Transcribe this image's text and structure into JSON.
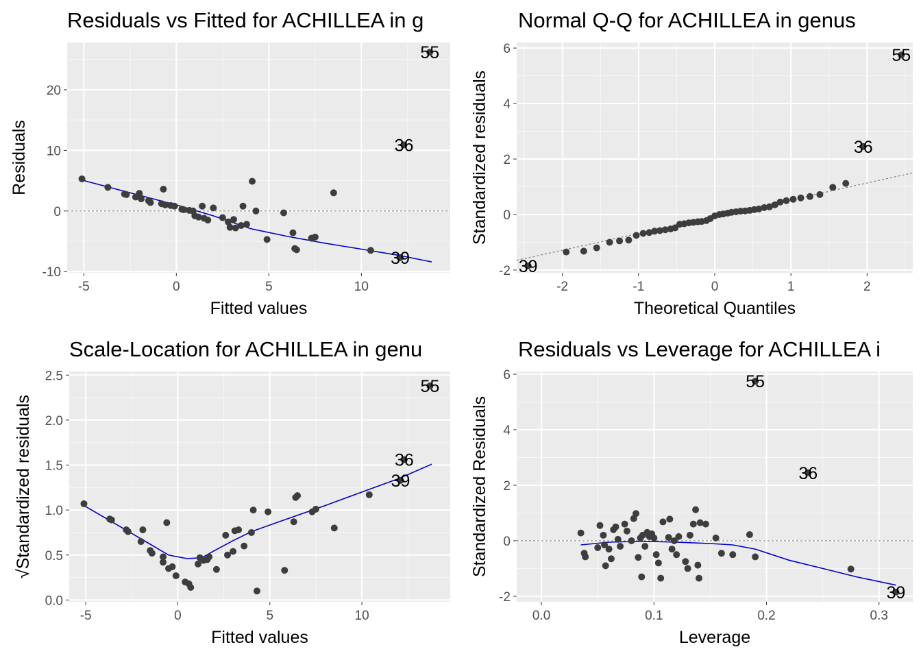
{
  "chart_data": [
    {
      "type": "scatter",
      "title": "Residuals vs Fitted for ACHILLEA in g",
      "xlabel": "Fitted values",
      "ylabel": "Residuals",
      "xlim": [
        -5.9,
        14.8
      ],
      "ylim": [
        -10.2,
        27.8
      ],
      "xticks": [
        -5,
        0,
        5,
        10
      ],
      "xtick_labels": [
        "-5",
        "0",
        "5",
        "10"
      ],
      "yticks": [
        -10,
        0,
        10,
        20
      ],
      "ytick_labels": [
        "-10",
        "0",
        "10",
        "20"
      ],
      "grid": true,
      "refline": {
        "type": "hline",
        "y": 0
      },
      "points": [
        [
          -5.1,
          5.3
        ],
        [
          -3.7,
          3.9
        ],
        [
          -2.8,
          2.8
        ],
        [
          -2.7,
          2.7
        ],
        [
          -2.0,
          2.9
        ],
        [
          -2.2,
          2.3
        ],
        [
          -1.9,
          2.0
        ],
        [
          -1.5,
          1.7
        ],
        [
          -1.4,
          1.4
        ],
        [
          -0.8,
          1.2
        ],
        [
          -0.7,
          3.6
        ],
        [
          -0.6,
          1.0
        ],
        [
          -0.3,
          0.9
        ],
        [
          -0.1,
          0.8
        ],
        [
          0.3,
          0.3
        ],
        [
          0.4,
          0.2
        ],
        [
          0.7,
          0.1
        ],
        [
          0.9,
          0.0
        ],
        [
          1.0,
          -0.8
        ],
        [
          1.2,
          -1.0
        ],
        [
          1.4,
          0.8
        ],
        [
          1.5,
          -1.2
        ],
        [
          1.7,
          -1.5
        ],
        [
          2.0,
          0.5
        ],
        [
          2.5,
          -1.1
        ],
        [
          2.8,
          -1.8
        ],
        [
          2.9,
          -2.7
        ],
        [
          3.1,
          -1.4
        ],
        [
          3.2,
          -2.8
        ],
        [
          3.5,
          -2.4
        ],
        [
          3.6,
          0.8
        ],
        [
          3.8,
          -2.2
        ],
        [
          4.1,
          4.9
        ],
        [
          4.3,
          0.0
        ],
        [
          4.9,
          -4.7
        ],
        [
          5.8,
          -0.3
        ],
        [
          6.3,
          -3.6
        ],
        [
          6.4,
          -6.2
        ],
        [
          6.5,
          -6.4
        ],
        [
          7.3,
          -4.5
        ],
        [
          7.5,
          -4.3
        ],
        [
          8.5,
          3.0
        ],
        [
          10.5,
          -6.5
        ],
        [
          12.3,
          10.9
        ],
        [
          12.1,
          -7.7
        ],
        [
          13.7,
          26.2
        ]
      ],
      "smooth": [
        [
          -5.1,
          5.1
        ],
        [
          0.0,
          1.0
        ],
        [
          2.0,
          -0.8
        ],
        [
          4.0,
          -2.9
        ],
        [
          6.0,
          -4.2
        ],
        [
          8.0,
          -5.3
        ],
        [
          10.0,
          -6.3
        ],
        [
          12.0,
          -7.3
        ],
        [
          13.8,
          -8.4
        ]
      ],
      "labels": [
        {
          "text": "55",
          "x": 13.7,
          "y": 26.2
        },
        {
          "text": "36",
          "x": 12.3,
          "y": 10.9
        },
        {
          "text": "39",
          "x": 12.1,
          "y": -7.7
        }
      ]
    },
    {
      "type": "scatter",
      "title": "Normal Q-Q for ACHILLEA in genus",
      "xlabel": "Theoretical Quantiles",
      "ylabel": "Standardized residuals",
      "xlim": [
        -2.6,
        2.6
      ],
      "ylim": [
        -2.1,
        6.2
      ],
      "xticks": [
        -2,
        -1,
        0,
        1,
        2
      ],
      "xtick_labels": [
        "-2",
        "-1",
        "0",
        "1",
        "2"
      ],
      "yticks": [
        -2,
        0,
        2,
        4,
        6
      ],
      "ytick_labels": [
        "-2",
        "0",
        "2",
        "4",
        "6"
      ],
      "grid": true,
      "refline": {
        "type": "line",
        "points": [
          [
            -2.6,
            -1.65
          ],
          [
            2.6,
            1.5
          ]
        ]
      },
      "points": [
        [
          -2.45,
          -1.85
        ],
        [
          -1.95,
          -1.35
        ],
        [
          -1.72,
          -1.32
        ],
        [
          -1.55,
          -1.2
        ],
        [
          -1.38,
          -1.0
        ],
        [
          -1.25,
          -0.95
        ],
        [
          -1.13,
          -0.92
        ],
        [
          -1.03,
          -0.75
        ],
        [
          -0.94,
          -0.68
        ],
        [
          -0.86,
          -0.65
        ],
        [
          -0.79,
          -0.6
        ],
        [
          -0.72,
          -0.58
        ],
        [
          -0.65,
          -0.55
        ],
        [
          -0.58,
          -0.52
        ],
        [
          -0.52,
          -0.48
        ],
        [
          -0.46,
          -0.35
        ],
        [
          -0.4,
          -0.33
        ],
        [
          -0.34,
          -0.3
        ],
        [
          -0.28,
          -0.28
        ],
        [
          -0.22,
          -0.26
        ],
        [
          -0.17,
          -0.25
        ],
        [
          -0.11,
          -0.22
        ],
        [
          -0.06,
          -0.15
        ],
        [
          0.0,
          -0.05
        ],
        [
          0.06,
          0.0
        ],
        [
          0.11,
          0.02
        ],
        [
          0.17,
          0.05
        ],
        [
          0.22,
          0.08
        ],
        [
          0.28,
          0.1
        ],
        [
          0.34,
          0.12
        ],
        [
          0.4,
          0.13
        ],
        [
          0.46,
          0.15
        ],
        [
          0.52,
          0.18
        ],
        [
          0.58,
          0.2
        ],
        [
          0.65,
          0.25
        ],
        [
          0.72,
          0.28
        ],
        [
          0.79,
          0.35
        ],
        [
          0.86,
          0.45
        ],
        [
          0.94,
          0.5
        ],
        [
          1.03,
          0.55
        ],
        [
          1.13,
          0.6
        ],
        [
          1.25,
          0.65
        ],
        [
          1.38,
          0.72
        ],
        [
          1.55,
          0.98
        ],
        [
          1.72,
          1.12
        ],
        [
          1.95,
          2.45
        ],
        [
          2.45,
          5.75
        ]
      ],
      "labels": [
        {
          "text": "55",
          "x": 2.45,
          "y": 5.75
        },
        {
          "text": "36",
          "x": 1.95,
          "y": 2.45
        },
        {
          "text": "39",
          "x": -2.45,
          "y": -1.85
        }
      ]
    },
    {
      "type": "scatter",
      "title": "Scale-Location for ACHILLEA in genu",
      "xlabel": "Fitted values",
      "ylabel": "√Standardized residuals",
      "xlim": [
        -5.9,
        14.8
      ],
      "ylim": [
        -0.02,
        2.54
      ],
      "xticks": [
        -5,
        0,
        5,
        10
      ],
      "xtick_labels": [
        "-5",
        "0",
        "5",
        "10"
      ],
      "yticks": [
        0.0,
        0.5,
        1.0,
        1.5,
        2.0,
        2.5
      ],
      "ytick_labels": [
        "0.0",
        "0.5",
        "1.0",
        "1.5",
        "2.0",
        "2.5"
      ],
      "grid": true,
      "points": [
        [
          -5.1,
          1.07
        ],
        [
          -3.7,
          0.9
        ],
        [
          -3.6,
          0.89
        ],
        [
          -2.8,
          0.78
        ],
        [
          -2.7,
          0.76
        ],
        [
          -2.0,
          0.65
        ],
        [
          -1.9,
          0.78
        ],
        [
          -1.5,
          0.55
        ],
        [
          -1.4,
          0.52
        ],
        [
          -0.8,
          0.48
        ],
        [
          -0.8,
          0.42
        ],
        [
          -0.6,
          0.86
        ],
        [
          -0.5,
          0.35
        ],
        [
          -0.3,
          0.37
        ],
        [
          -0.1,
          0.27
        ],
        [
          0.4,
          0.2
        ],
        [
          0.6,
          0.18
        ],
        [
          0.7,
          0.14
        ],
        [
          1.1,
          0.4
        ],
        [
          1.2,
          0.47
        ],
        [
          1.4,
          0.44
        ],
        [
          1.6,
          0.45
        ],
        [
          1.7,
          0.48
        ],
        [
          2.1,
          0.34
        ],
        [
          2.6,
          0.72
        ],
        [
          2.7,
          0.5
        ],
        [
          3.0,
          0.54
        ],
        [
          3.1,
          0.77
        ],
        [
          3.3,
          0.78
        ],
        [
          3.6,
          0.6
        ],
        [
          4.0,
          0.75
        ],
        [
          4.1,
          1.0
        ],
        [
          4.3,
          0.1
        ],
        [
          4.9,
          0.98
        ],
        [
          5.8,
          0.33
        ],
        [
          6.3,
          0.87
        ],
        [
          6.4,
          1.14
        ],
        [
          6.5,
          1.16
        ],
        [
          7.3,
          0.98
        ],
        [
          7.5,
          1.01
        ],
        [
          8.5,
          0.8
        ],
        [
          10.4,
          1.17
        ],
        [
          12.3,
          1.56
        ],
        [
          12.1,
          1.33
        ],
        [
          13.7,
          2.38
        ]
      ],
      "smooth": [
        [
          -5.1,
          1.05
        ],
        [
          -3.0,
          0.8
        ],
        [
          -1.5,
          0.62
        ],
        [
          -0.5,
          0.5
        ],
        [
          0.5,
          0.46
        ],
        [
          1.3,
          0.47
        ],
        [
          2.0,
          0.55
        ],
        [
          3.0,
          0.66
        ],
        [
          4.0,
          0.76
        ],
        [
          5.5,
          0.87
        ],
        [
          8.0,
          1.05
        ],
        [
          10.0,
          1.2
        ],
        [
          12.0,
          1.35
        ],
        [
          13.8,
          1.51
        ]
      ],
      "labels": [
        {
          "text": "55",
          "x": 13.7,
          "y": 2.38
        },
        {
          "text": "36",
          "x": 12.3,
          "y": 1.56
        },
        {
          "text": "39",
          "x": 12.1,
          "y": 1.33
        }
      ]
    },
    {
      "type": "scatter",
      "title": "Residuals vs Leverage for ACHILLEA i",
      "xlabel": "Leverage",
      "ylabel": "Standardized Residuals",
      "xlim": [
        -0.022,
        0.33
      ],
      "ylim": [
        -2.2,
        6.1
      ],
      "xticks": [
        0.0,
        0.1,
        0.2,
        0.3
      ],
      "xtick_labels": [
        "0.0",
        "0.1",
        "0.2",
        "0.3"
      ],
      "yticks": [
        -2,
        0,
        2,
        4,
        6
      ],
      "ytick_labels": [
        "-2",
        "0",
        "2",
        "4",
        "6"
      ],
      "grid": true,
      "refline": {
        "type": "hline",
        "y": 0
      },
      "points": [
        [
          0.035,
          0.28
        ],
        [
          0.038,
          -0.45
        ],
        [
          0.039,
          -0.58
        ],
        [
          0.05,
          -0.25
        ],
        [
          0.052,
          0.55
        ],
        [
          0.055,
          0.2
        ],
        [
          0.056,
          -0.15
        ],
        [
          0.057,
          -0.9
        ],
        [
          0.06,
          -0.3
        ],
        [
          0.062,
          -0.65
        ],
        [
          0.064,
          0.4
        ],
        [
          0.066,
          0.5
        ],
        [
          0.068,
          0.05
        ],
        [
          0.07,
          -0.2
        ],
        [
          0.074,
          0.6
        ],
        [
          0.076,
          0.35
        ],
        [
          0.08,
          0.0
        ],
        [
          0.082,
          0.8
        ],
        [
          0.084,
          0.98
        ],
        [
          0.086,
          -0.6
        ],
        [
          0.088,
          0.1
        ],
        [
          0.089,
          -1.3
        ],
        [
          0.09,
          0.2
        ],
        [
          0.092,
          -0.2
        ],
        [
          0.094,
          0.3
        ],
        [
          0.096,
          0.15
        ],
        [
          0.098,
          0.25
        ],
        [
          0.1,
          0.1
        ],
        [
          0.102,
          -0.5
        ],
        [
          0.104,
          -0.8
        ],
        [
          0.106,
          -1.35
        ],
        [
          0.108,
          0.68
        ],
        [
          0.113,
          0.12
        ],
        [
          0.114,
          0.78
        ],
        [
          0.116,
          -0.3
        ],
        [
          0.118,
          0.0
        ],
        [
          0.12,
          -0.5
        ],
        [
          0.122,
          0.15
        ],
        [
          0.128,
          -0.75
        ],
        [
          0.13,
          -1.0
        ],
        [
          0.132,
          0.2
        ],
        [
          0.135,
          0.6
        ],
        [
          0.137,
          1.12
        ],
        [
          0.139,
          -0.88
        ],
        [
          0.14,
          -1.35
        ],
        [
          0.141,
          0.65
        ],
        [
          0.146,
          0.6
        ],
        [
          0.155,
          0.1
        ],
        [
          0.16,
          -0.45
        ],
        [
          0.17,
          -0.5
        ],
        [
          0.185,
          0.22
        ],
        [
          0.19,
          -0.58
        ],
        [
          0.275,
          -1.02
        ],
        [
          0.19,
          5.75
        ],
        [
          0.237,
          2.45
        ],
        [
          0.315,
          -1.85
        ]
      ],
      "smooth": [
        [
          0.035,
          -0.15
        ],
        [
          0.06,
          -0.05
        ],
        [
          0.09,
          -0.02
        ],
        [
          0.12,
          -0.05
        ],
        [
          0.15,
          -0.1
        ],
        [
          0.17,
          -0.15
        ],
        [
          0.19,
          -0.3
        ],
        [
          0.22,
          -0.7
        ],
        [
          0.25,
          -1.0
        ],
        [
          0.28,
          -1.3
        ],
        [
          0.315,
          -1.6
        ]
      ],
      "labels": [
        {
          "text": "55",
          "x": 0.19,
          "y": 5.75
        },
        {
          "text": "36",
          "x": 0.237,
          "y": 2.45
        },
        {
          "text": "39",
          "x": 0.315,
          "y": -1.85
        }
      ]
    }
  ]
}
